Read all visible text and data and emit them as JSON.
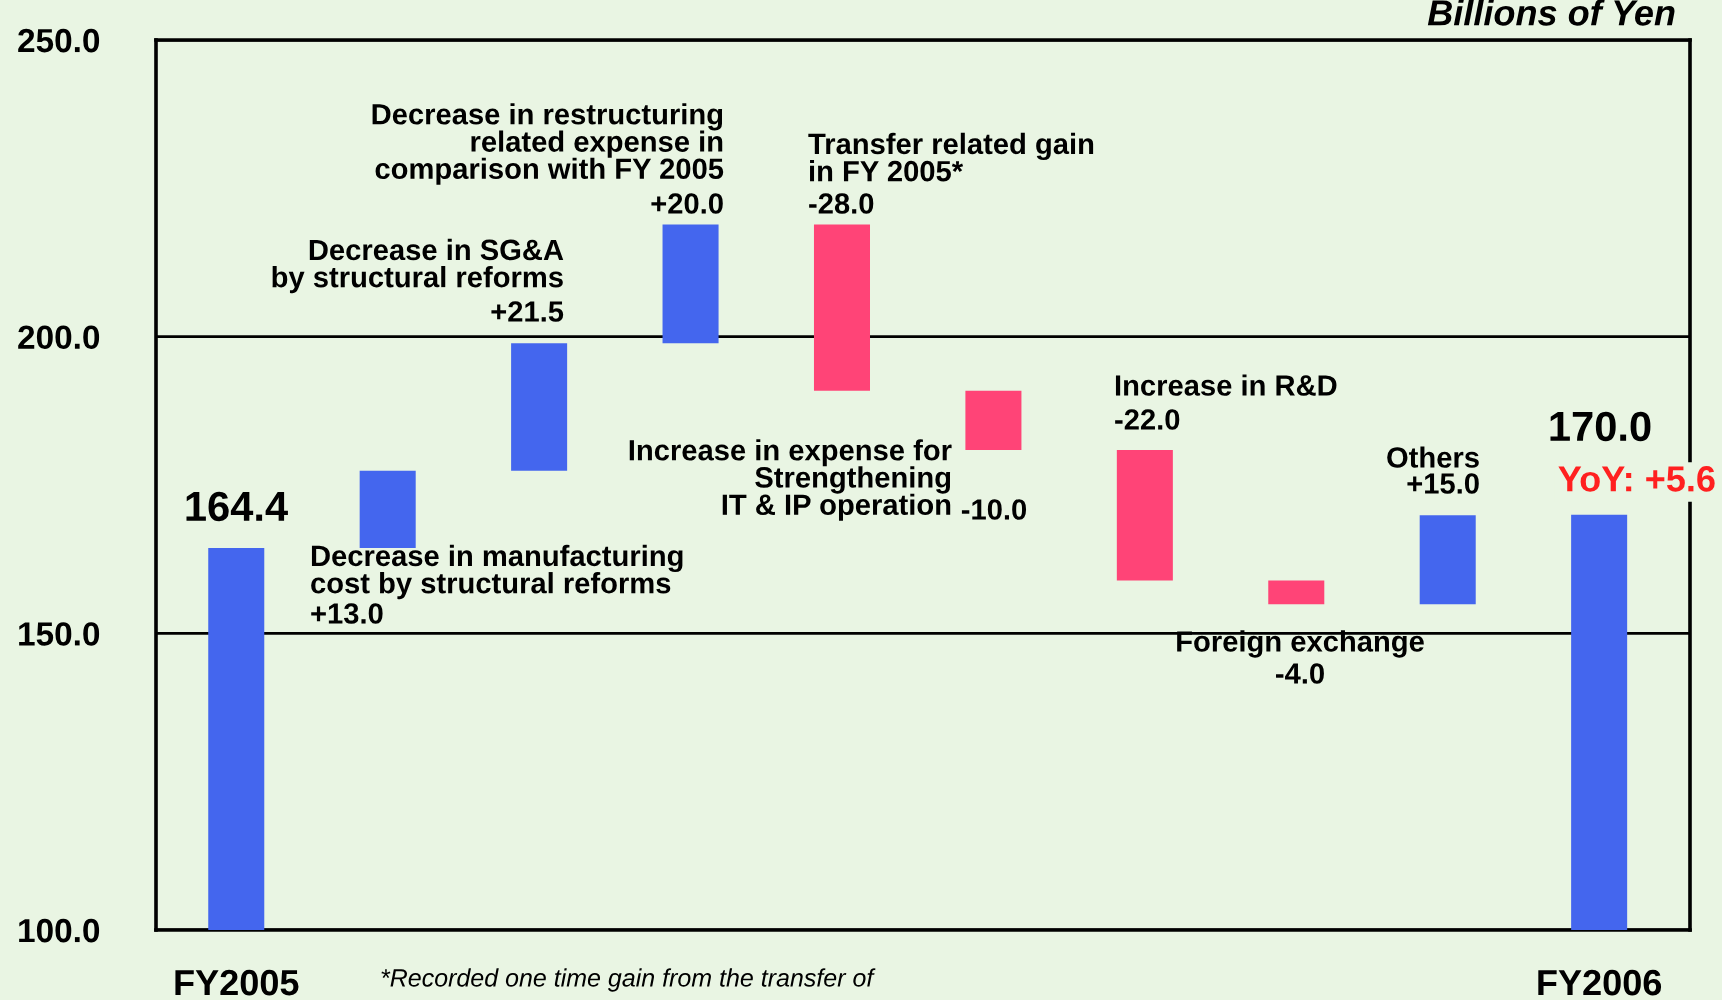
{
  "chart_data": {
    "type": "bar",
    "ylabel": "Billions of Yen",
    "categories": [
      "FY2005",
      null,
      null,
      null,
      null,
      null,
      null,
      null,
      null,
      "FY2006"
    ],
    "base": [
      100,
      164.4,
      177.4,
      198.9,
      218.9,
      190.9,
      180.9,
      158.9,
      154.9,
      100
    ],
    "values": [
      64.4,
      13.0,
      21.5,
      20.0,
      -28.0,
      -10.0,
      -22.0,
      -4.0,
      15.0,
      70.0
    ],
    "colors": [
      "#4466ee",
      "#4466ee",
      "#4466ee",
      "#4466ee",
      "#ff4477",
      "#ff4477",
      "#ff4477",
      "#ff4477",
      "#4466ee",
      "#4466ee"
    ],
    "value_labels": [
      "164.4",
      "+13.0",
      "+21.5",
      "+20.0",
      "-28.0",
      "-10.0",
      "-22.0",
      "-4.0",
      "+15.0",
      "170.0"
    ],
    "ylim": [
      100,
      250
    ],
    "yticks": [
      {
        "value": 100,
        "label": "100.0"
      },
      {
        "value": 150,
        "label": "150.0"
      },
      {
        "value": 200,
        "label": "200.0"
      },
      {
        "value": 250,
        "label": "250.0"
      }
    ],
    "grid": "y",
    "annotations": [
      "Decrease in manufacturing\ncost by structural reforms",
      "Decrease in SG&A\nby structural reforms",
      "Decrease in restructuring\nrelated expense in\ncomparison with FY 2005",
      "Transfer related gain\nin FY 2005*",
      "Increase in expense for\nStrengthening\nIT & IP operation",
      "Increase in R&D",
      "Foreign exchange",
      "Others",
      "YoY: +5.6",
      "*Recorded one time gain from the transfer of"
    ]
  }
}
